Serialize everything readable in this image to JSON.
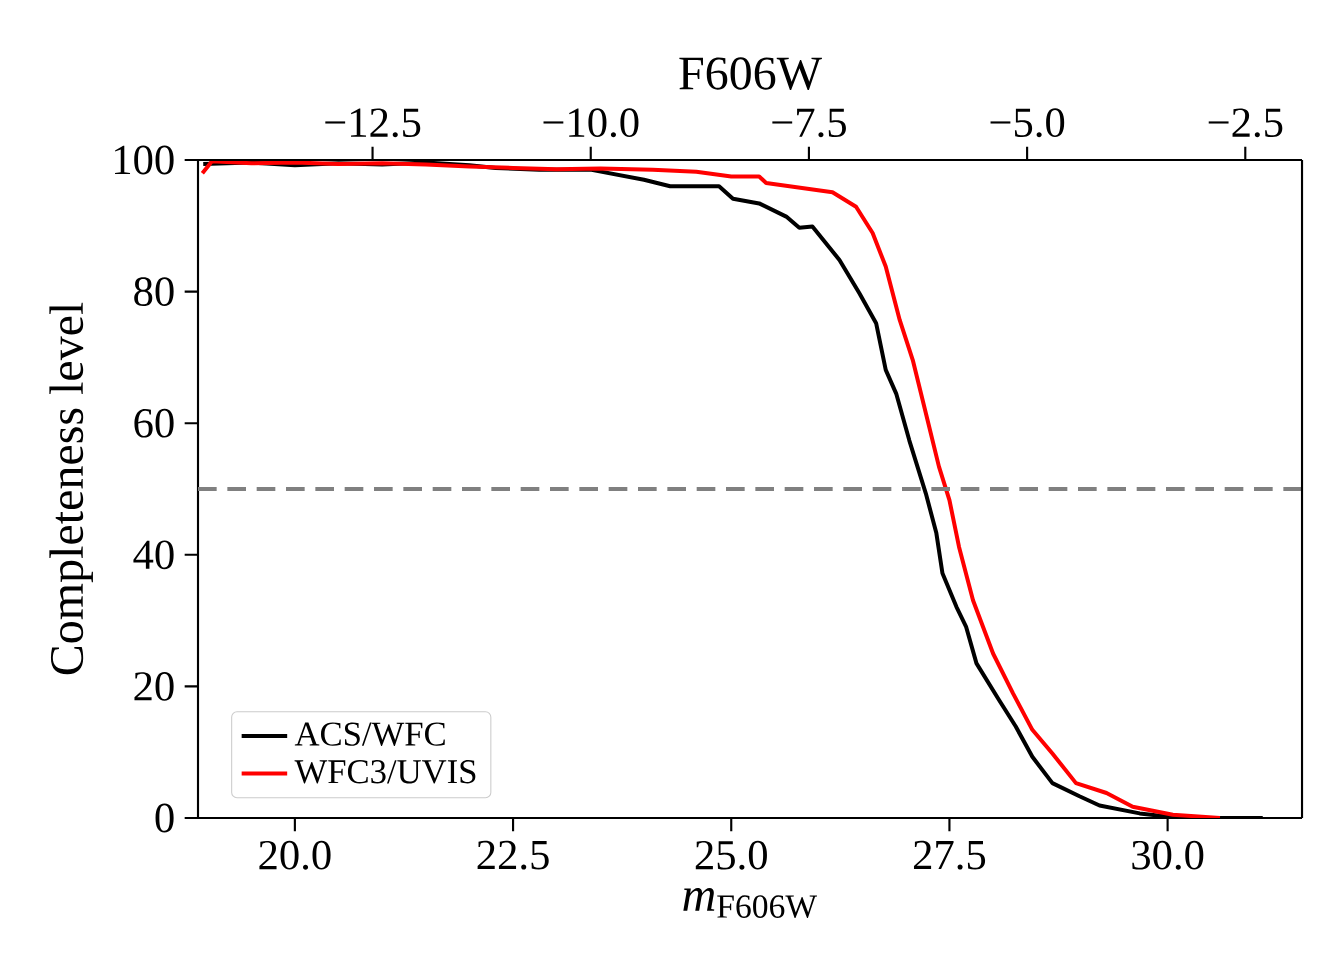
{
  "chart_data": {
    "type": "line",
    "xlabel": "*m*$_{F606W}$",
    "ylabel": "Completeness level",
    "x2label": "F606W",
    "xlim": [
      18.89,
      31.54
    ],
    "ylim": [
      0,
      100
    ],
    "xticks": [
      {
        "value": 20,
        "label": "20.0"
      },
      {
        "value": 22.5,
        "label": "22.5"
      },
      {
        "value": 25,
        "label": "25.0"
      },
      {
        "value": 27.5,
        "label": "27.5"
      },
      {
        "value": 30,
        "label": "30.0"
      }
    ],
    "yticks": [
      0,
      20,
      40,
      60,
      80,
      100
    ],
    "x2lim": [
      -14.5,
      -1.85
    ],
    "x2ticks": [
      {
        "value": -12.5,
        "label": "−12.5"
      },
      {
        "value": -10,
        "label": "−10.0"
      },
      {
        "value": -7.5,
        "label": "−7.5"
      },
      {
        "value": -5,
        "label": "−5.0"
      },
      {
        "value": -2.5,
        "label": "−2.5"
      }
    ],
    "legend": "bottom left",
    "grid": false,
    "line_style": "solid",
    "marker": "none",
    "ref_lines": [
      {
        "axis": "y",
        "value": 50,
        "color": "#808080",
        "line_style": "dashed"
      }
    ],
    "series": [
      {
        "name": "ACS/WFC",
        "color": "#000000",
        "x": [
          18.95,
          19.5,
          20.0,
          20.5,
          21.0,
          21.5,
          22.0,
          22.3,
          22.8,
          23.4,
          24.0,
          24.3,
          24.86,
          25.02,
          25.32,
          25.63,
          25.78,
          25.93,
          26.24,
          26.47,
          26.66,
          26.77,
          26.89,
          27.04,
          27.23,
          27.35,
          27.42,
          27.58,
          27.69,
          27.81,
          28.07,
          28.26,
          28.45,
          28.68,
          28.99,
          29.22,
          29.68,
          30.14,
          31.09
        ],
        "values": [
          99.4,
          99.6,
          99.2,
          99.5,
          99.3,
          99.6,
          99.2,
          98.8,
          98.5,
          98.5,
          97.0,
          96.0,
          96.0,
          94.1,
          93.4,
          91.4,
          89.7,
          89.9,
          84.8,
          79.7,
          75.2,
          68.1,
          64.5,
          57.4,
          49.3,
          43.3,
          37.2,
          32.1,
          29.1,
          23.5,
          17.9,
          13.9,
          9.3,
          5.3,
          3.3,
          1.9,
          0.7,
          0,
          0
        ]
      },
      {
        "name": "WFC3/UVIS",
        "color": "#ff0000",
        "x": [
          18.94,
          19.05,
          19.5,
          20.0,
          20.5,
          21.0,
          21.5,
          22.0,
          22.5,
          23.0,
          23.5,
          24.1,
          24.6,
          25.0,
          25.32,
          25.4,
          26.16,
          26.43,
          26.62,
          26.77,
          26.93,
          27.08,
          27.23,
          27.38,
          27.5,
          27.61,
          27.77,
          28.0,
          28.23,
          28.45,
          28.68,
          28.95,
          29.3,
          29.6,
          30.06,
          30.6
        ],
        "values": [
          98.0,
          99.8,
          99.5,
          99.6,
          99.4,
          99.5,
          99.3,
          99.0,
          98.8,
          98.6,
          98.7,
          98.5,
          98.2,
          97.5,
          97.5,
          96.5,
          95.1,
          92.9,
          88.9,
          83.8,
          75.7,
          69.6,
          61.5,
          53.4,
          48.3,
          41.2,
          33.1,
          25.0,
          18.9,
          13.4,
          9.8,
          5.3,
          3.8,
          1.7,
          0.5,
          0
        ]
      }
    ]
  }
}
